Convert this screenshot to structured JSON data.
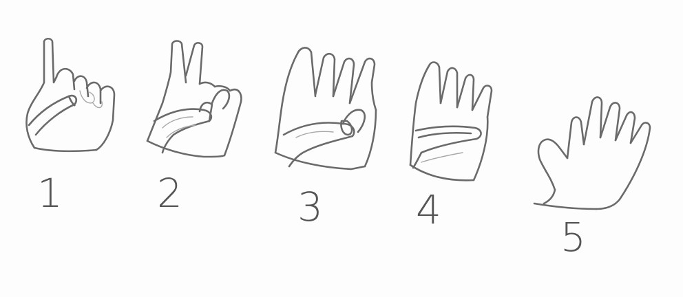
{
  "hands": [
    {
      "count_label": "1",
      "fingers_raised": 1
    },
    {
      "count_label": "2",
      "fingers_raised": 2
    },
    {
      "count_label": "3",
      "fingers_raised": 3
    },
    {
      "count_label": "4",
      "fingers_raised": 4
    },
    {
      "count_label": "5",
      "fingers_raised": 5
    }
  ],
  "colors": {
    "pencil": "#6a6a6a",
    "paper": "#fdfdfd"
  }
}
